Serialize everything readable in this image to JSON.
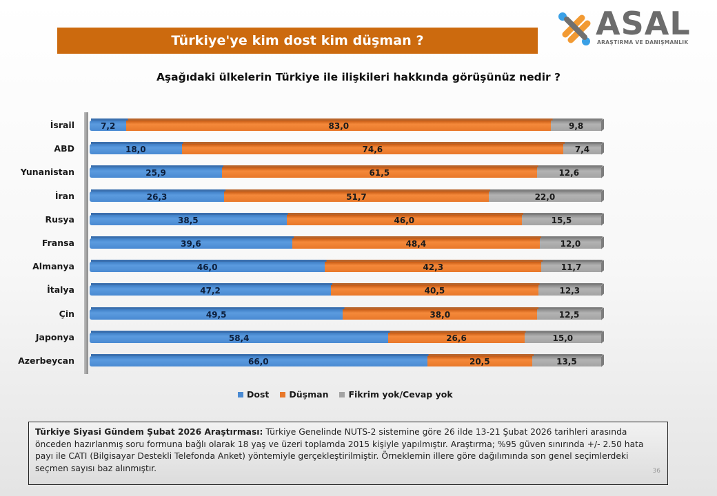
{
  "header": {
    "title": "Türkiye'ye kim dost kim düşman ?",
    "logo_main": "ASAL",
    "logo_sub": "ARAŞTIRMA VE DANIŞMANLIK"
  },
  "colors": {
    "title_bar": "#cc6a0e",
    "dost": "#4a8ad2",
    "dusman": "#e8782a",
    "fikrim": "#a3a3a3"
  },
  "chart_data": {
    "type": "bar",
    "orientation": "horizontal",
    "stacked": true,
    "title": "Aşağıdaki ülkelerin Türkiye ile ilişkileri hakkında görüşünüz nedir ?",
    "xlabel": "",
    "ylabel": "",
    "xlim": [
      0,
      100
    ],
    "grid": false,
    "legend_position": "bottom",
    "categories": [
      "İsrail",
      "ABD",
      "Yunanistan",
      "İran",
      "Rusya",
      "Fransa",
      "Almanya",
      "İtalya",
      "Çin",
      "Japonya",
      "Azerbeycan"
    ],
    "series": [
      {
        "name": "Dost",
        "values": [
          7.2,
          18.0,
          25.9,
          26.3,
          38.5,
          39.6,
          46.0,
          47.2,
          49.5,
          58.4,
          66.0
        ],
        "labels": [
          "7,2",
          "18,0",
          "25,9",
          "26,3",
          "38,5",
          "39,6",
          "46,0",
          "47,2",
          "49,5",
          "58,4",
          "66,0"
        ]
      },
      {
        "name": "Düşman",
        "values": [
          83.0,
          74.6,
          61.5,
          51.7,
          46.0,
          48.4,
          42.3,
          40.5,
          38.0,
          26.6,
          20.5
        ],
        "labels": [
          "83,0",
          "74,6",
          "61,5",
          "51,7",
          "46,0",
          "48,4",
          "42,3",
          "40,5",
          "38,0",
          "26,6",
          "20,5"
        ]
      },
      {
        "name": "Fikrim yok/Cevap yok",
        "values": [
          9.8,
          7.4,
          12.6,
          22.0,
          15.5,
          12.0,
          11.7,
          12.3,
          12.5,
          15.0,
          13.5
        ],
        "labels": [
          "9,8",
          "7,4",
          "12,6",
          "22,0",
          "15,5",
          "12,0",
          "11,7",
          "12,3",
          "12,5",
          "15,0",
          "13,5"
        ]
      }
    ]
  },
  "legend": [
    {
      "label": "Dost",
      "color": "#4a8ad2"
    },
    {
      "label": "Düşman",
      "color": "#e8782a"
    },
    {
      "label": "Fikrim yok/Cevap yok",
      "color": "#a3a3a3"
    }
  ],
  "note": {
    "bold": "Türkiye Siyasi Gündem Şubat 2026 Araştırması:",
    "text": " Türkiye Genelinde  NUTS-2 sistemine göre 26 ilde 13-21 Şubat 2026 tarihleri arasında önceden  hazırlanmış soru formuna bağlı olarak 18 yaş ve üzeri toplamda 2015 kişiyle yapılmıştır. Araştırma; %95 güven sınırında +/- 2.50 hata payı ile CATI (Bilgisayar Destekli Telefonda  Anket) yöntemiyle gerçekleştirilmiştir. Örneklemin illere göre dağılımında son genel  seçimlerdeki  seçmen sayısı baz alınmıştır.",
    "page_number": "36"
  }
}
